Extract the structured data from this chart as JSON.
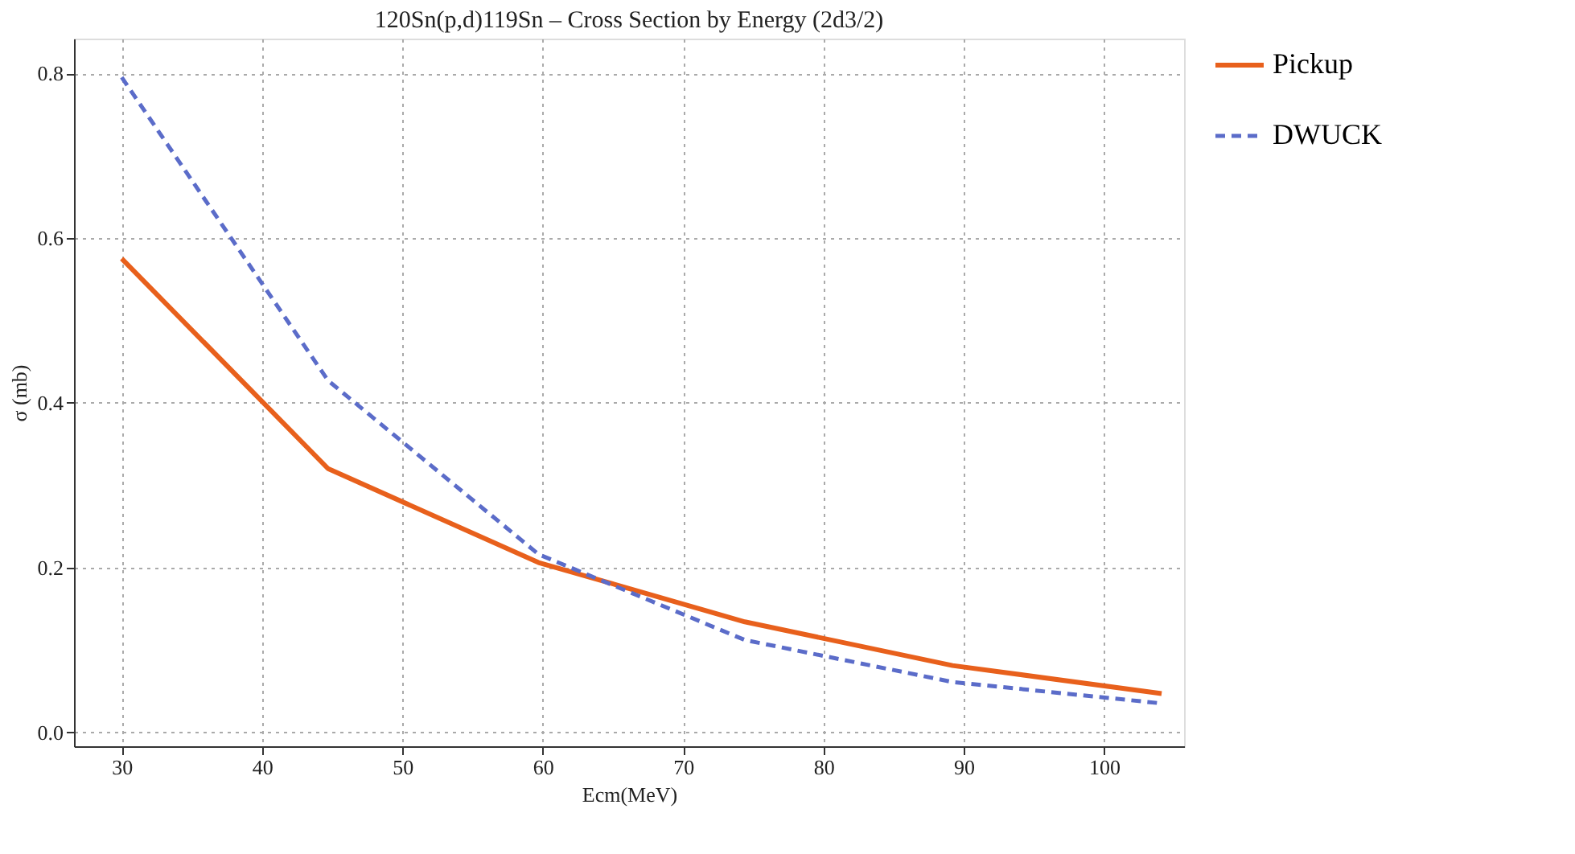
{
  "chart_data": {
    "type": "line",
    "title": "120Sn(p,d)119Sn – Cross Section by Energy (2d3/2)",
    "xlabel": "Ecm(MeV)",
    "ylabel": "σ (mb)",
    "x": [
      30,
      44.7,
      59.7,
      74.4,
      89.2,
      104.1
    ],
    "series": [
      {
        "name": "Pickup",
        "color": "#e8601c",
        "line_style": "solid",
        "values": [
          0.575,
          0.32,
          0.206,
          0.134,
          0.081,
          0.047
        ]
      },
      {
        "name": "DWUCK",
        "color": "#5b6cc9",
        "line_style": "dashed",
        "values": [
          0.795,
          0.427,
          0.216,
          0.112,
          0.061,
          0.035
        ]
      }
    ],
    "xlim": [
      26.6,
      105.7
    ],
    "ylim": [
      -0.017,
      0.842
    ],
    "xticks": [
      30,
      40,
      50,
      60,
      70,
      80,
      90,
      100
    ],
    "yticks": [
      {
        "value": 0,
        "label": "0.0"
      },
      {
        "value": 0.2,
        "label": "0.2"
      },
      {
        "value": 0.4,
        "label": "0.4"
      },
      {
        "value": 0.6,
        "label": "0.6"
      },
      {
        "value": 0.8,
        "label": "0.8"
      }
    ],
    "grid": true,
    "legend": "right",
    "marker": "none"
  }
}
